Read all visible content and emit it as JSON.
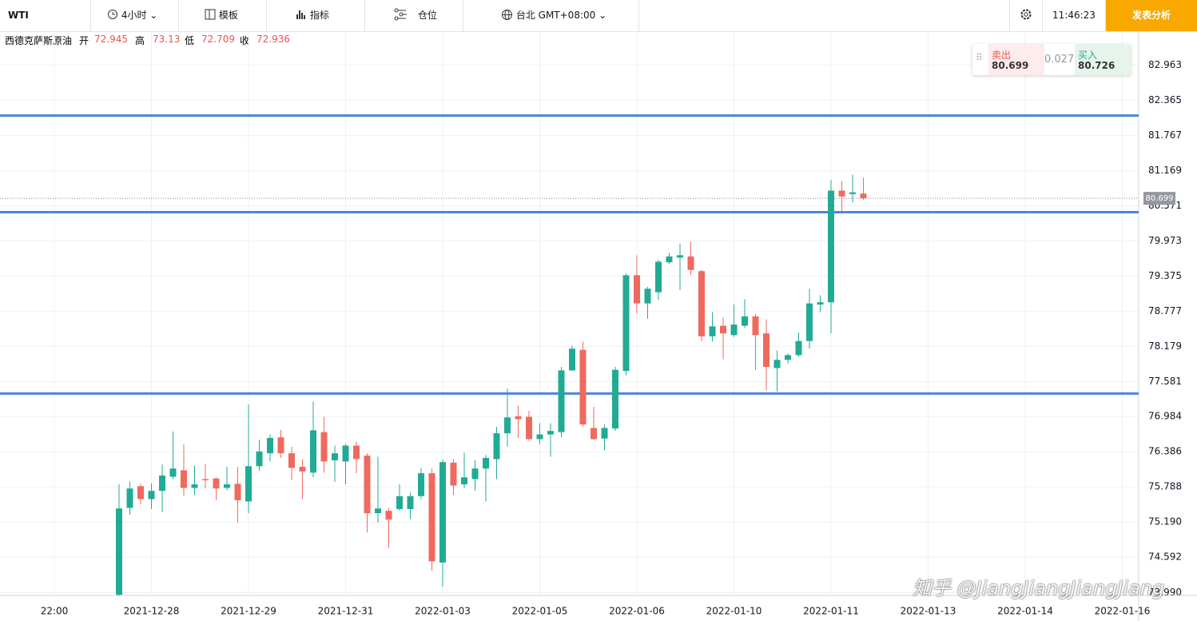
{
  "toolbar": {
    "symbol": "WTI",
    "interval": "4小时",
    "template": "模板",
    "indicators": "指标",
    "positions": "仓位",
    "timezone": "台北 GMT+08:00",
    "clock": "11:46:23",
    "publish": "发表分析"
  },
  "legend": {
    "name": "西德克萨斯原油",
    "open_label": "开",
    "open": 72.945,
    "high_label": "高",
    "high": 73.13,
    "low_label": "低",
    "low": 72.709,
    "close_label": "收",
    "close": 72.936
  },
  "trade": {
    "sell_label": "卖出",
    "sell": 80.699,
    "spread": 0.027,
    "buy_label": "买入",
    "buy": 80.726
  },
  "watermark": "知乎 @JiangJiangJiangJiang",
  "chart_data": {
    "type": "candlestick",
    "x_labels": [
      "22:00",
      "2021-12-28",
      "2021-12-29",
      "2021-12-31",
      "2022-01-03",
      "2022-01-05",
      "2022-01-06",
      "2022-01-10",
      "2022-01-11",
      "2022-01-13",
      "2022-01-14",
      "2022-01-16"
    ],
    "open": [
      73.95,
      75.43,
      75.8,
      75.58,
      75.72,
      75.96,
      76.07,
      75.77,
      75.92,
      75.93,
      75.77,
      75.84,
      75.54,
      76.14,
      76.36,
      76.63,
      76.36,
      76.13,
      76.03,
      76.72,
      76.24,
      76.22,
      76.49,
      76.32,
      75.34,
      75.38,
      75.41,
      75.41,
      75.63,
      76.02,
      74.5,
      76.2,
      75.83,
      75.92,
      76.1,
      76.26,
      76.7,
      76.99,
      76.98,
      76.6,
      76.68,
      76.72,
      77.77,
      78.12,
      76.79,
      76.61,
      76.78,
      77.76,
      79.39,
      78.91,
      79.1,
      79.61,
      79.69,
      79.71,
      79.46,
      78.35,
      78.53,
      78.37,
      78.53,
      78.69,
      78.4,
      77.81,
      77.95,
      78.03,
      78.27,
      78.89,
      78.93,
      80.83,
      80.77,
      80.78
    ],
    "high": [
      75.83,
      75.88,
      75.84,
      75.85,
      76.17,
      76.73,
      76.51,
      76.15,
      76.18,
      75.95,
      76.13,
      76.13,
      77.19,
      76.59,
      76.68,
      76.76,
      76.47,
      76.26,
      77.24,
      76.98,
      76.49,
      76.52,
      76.56,
      76.36,
      76.3,
      75.43,
      75.83,
      75.69,
      76.11,
      76.1,
      76.25,
      76.26,
      76.37,
      76.24,
      76.33,
      76.81,
      77.46,
      77.17,
      77.08,
      76.87,
      76.87,
      77.83,
      78.19,
      78.26,
      77.15,
      76.85,
      77.83,
      79.42,
      79.73,
      79.19,
      79.65,
      79.77,
      79.93,
      79.96,
      79.48,
      78.76,
      78.67,
      78.89,
      78.98,
      78.73,
      78.64,
      78.11,
      78.06,
      78.41,
      79.16,
      79.05,
      81.01,
      80.99,
      81.1,
      81.05
    ],
    "low": [
      73.94,
      75.31,
      75.49,
      75.41,
      75.36,
      75.92,
      75.63,
      75.65,
      75.76,
      75.56,
      75.73,
      75.18,
      75.34,
      76.06,
      76.22,
      76.28,
      75.9,
      75.58,
      75.95,
      76.03,
      75.87,
      75.83,
      76.02,
      75.01,
      75.18,
      74.75,
      75.38,
      75.24,
      75.58,
      74.36,
      74.09,
      75.65,
      75.77,
      75.72,
      75.54,
      75.92,
      76.47,
      76.62,
      76.57,
      76.52,
      76.3,
      76.63,
      77.76,
      76.81,
      76.59,
      76.41,
      76.74,
      77.69,
      78.74,
      78.65,
      78.97,
      79.58,
      79.14,
      79.39,
      78.26,
      78.26,
      77.96,
      78.34,
      78.49,
      77.78,
      77.43,
      77.41,
      77.89,
      78.0,
      78.14,
      78.76,
      78.4,
      80.48,
      80.63,
      80.67
    ],
    "close": [
      75.42,
      75.76,
      75.58,
      75.72,
      75.98,
      76.1,
      75.77,
      75.83,
      75.9,
      75.76,
      75.83,
      75.56,
      76.14,
      76.39,
      76.62,
      76.36,
      76.11,
      76.05,
      76.75,
      76.22,
      76.36,
      76.49,
      76.26,
      75.34,
      75.42,
      75.23,
      75.63,
      75.63,
      76.02,
      74.52,
      76.21,
      75.81,
      75.95,
      76.1,
      76.28,
      76.7,
      76.97,
      76.94,
      76.6,
      76.68,
      76.74,
      77.77,
      78.14,
      76.85,
      76.6,
      76.79,
      77.78,
      79.39,
      78.91,
      79.16,
      79.62,
      79.71,
      79.73,
      79.48,
      78.35,
      78.52,
      78.4,
      78.55,
      78.69,
      78.37,
      77.83,
      77.95,
      78.03,
      78.27,
      78.91,
      78.93,
      80.83,
      80.73,
      80.8,
      80.699
    ],
    "up_color": "#22ab94",
    "down_color": "#ef6a5e",
    "levels": [
      82.107,
      80.462,
      77.377
    ],
    "level_color": "#4a86d8",
    "current_price": 80.699,
    "ylim": [
      73.94,
      83.53
    ],
    "yticks": [
      82.963,
      82.365,
      81.767,
      81.169,
      80.571,
      79.973,
      79.375,
      78.777,
      78.179,
      77.581,
      76.984,
      76.386,
      75.788,
      {
        "value": 75.19,
        "label": "75.190"
      },
      74.592,
      {
        "value": 73.99,
        "label": "73.990"
      }
    ],
    "grid": true
  }
}
